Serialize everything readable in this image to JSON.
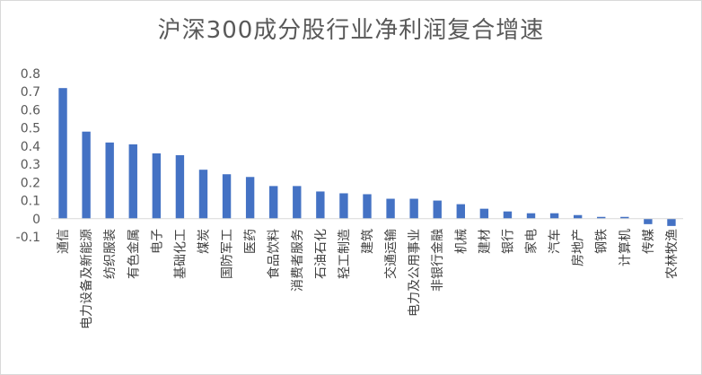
{
  "chart_data": {
    "type": "bar",
    "title": "沪深300成分股行业净利润复合增速",
    "xlabel": "",
    "ylabel": "",
    "ylim": [
      -0.1,
      0.8
    ],
    "yticks": [
      0.8,
      0.7,
      0.6,
      0.5,
      0.4,
      0.3,
      0.2,
      0.1,
      0,
      -0.1
    ],
    "ytick_labels": [
      "0.8",
      "0.7",
      "0.6",
      "0.5",
      "0.4",
      "0.3",
      "0.2",
      "0.1",
      "0",
      "-0.1"
    ],
    "grid": false,
    "legend": "none",
    "bar_color": "#4472C4",
    "categories": [
      "通信",
      "电力设备及新能源",
      "纺织服装",
      "有色金属",
      "电子",
      "基础化工",
      "煤炭",
      "国防军工",
      "医药",
      "食品饮料",
      "消费者服务",
      "石油石化",
      "轻工制造",
      "建筑",
      "交通运输",
      "电力及公用事业",
      "非银行金融",
      "机械",
      "建材",
      "银行",
      "家电",
      "汽车",
      "房地产",
      "钢铁",
      "计算机",
      "传媒",
      "农林牧渔"
    ],
    "values": [
      0.72,
      0.48,
      0.42,
      0.41,
      0.36,
      0.35,
      0.27,
      0.245,
      0.23,
      0.18,
      0.18,
      0.15,
      0.14,
      0.135,
      0.11,
      0.11,
      0.1,
      0.08,
      0.055,
      0.04,
      0.03,
      0.03,
      0.02,
      0.01,
      0.01,
      -0.03,
      -0.04
    ]
  }
}
